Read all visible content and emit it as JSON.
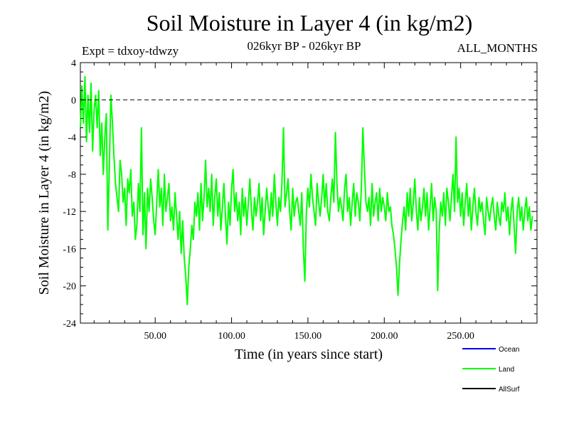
{
  "header": {
    "title": "Soil Moisture in Layer 4 (in kg/m2)",
    "expt": "Expt = tdxoy-tdwzy",
    "period": "026kyr BP - 026kyr BP",
    "months": "ALL_MONTHS"
  },
  "chart_data": {
    "type": "line",
    "title": "Soil Moisture in Layer 4 (in kg/m2)",
    "xlabel": "Time (in years since start)",
    "ylabel": "Soil Moisture in Layer 4 (in kg/m2)",
    "xlim": [
      1,
      300
    ],
    "ylim": [
      -24,
      4
    ],
    "x_ticks": [
      50,
      100,
      150,
      200,
      250
    ],
    "x_tick_labels": [
      "50.00",
      "100.00",
      "150.00",
      "200.00",
      "250.00"
    ],
    "y_ticks": [
      4,
      0,
      -4,
      -8,
      -12,
      -16,
      -20,
      -24
    ],
    "y_tick_labels": [
      "4",
      "0",
      "-4",
      "-8",
      "-12",
      "-16",
      "-20",
      "-24"
    ],
    "reference_line": {
      "y": 0,
      "style": "dashed"
    },
    "legend": {
      "position": "bottom-right",
      "entries": [
        "Ocean",
        "Land",
        "AllSurf"
      ]
    },
    "series": [
      {
        "name": "Ocean",
        "color": "#0000ff",
        "values": []
      },
      {
        "name": "Land",
        "color": "#00ff00",
        "x_start": 1,
        "x_step": 1,
        "values": [
          -3,
          1.5,
          -2.5,
          2.5,
          -4.5,
          0.5,
          -3.5,
          1.8,
          -5.5,
          -1,
          0.5,
          -3,
          1,
          -6,
          -2.5,
          -8,
          -4,
          -1.5,
          -14,
          -7,
          0.5,
          -2.5,
          -6,
          -9,
          -10.5,
          -12,
          -6.5,
          -8,
          -11,
          -9.5,
          -13.5,
          -8.5,
          -10,
          -7.5,
          -12.5,
          -11,
          -15,
          -13.5,
          -9,
          -12,
          -3,
          -14.5,
          -10,
          -16,
          -9.5,
          -12,
          -8.5,
          -10.5,
          -13,
          -14.5,
          -11,
          -7.5,
          -11.5,
          -9.5,
          -13.5,
          -8,
          -12,
          -10.5,
          -9,
          -13,
          -11.5,
          -14,
          -10,
          -12.5,
          -15,
          -12,
          -16.5,
          -13,
          -17,
          -19,
          -22,
          -18,
          -16,
          -13.5,
          -15,
          -11,
          -12.5,
          -10,
          -14,
          -9,
          -13,
          -10.5,
          -6.5,
          -11.5,
          -9.5,
          -12,
          -8,
          -13.5,
          -10.5,
          -8.5,
          -12.5,
          -10,
          -14,
          -11.5,
          -9,
          -12.5,
          -15.5,
          -11,
          -13.5,
          -9.5,
          -7.5,
          -12,
          -10,
          -13,
          -11,
          -14.5,
          -9.5,
          -12.5,
          -10.5,
          -13.5,
          -11,
          -8.5,
          -12,
          -14,
          -10.5,
          -12.5,
          -11,
          -9,
          -13,
          -10.5,
          -14.5,
          -12,
          -9.5,
          -11.5,
          -13,
          -10,
          -12.5,
          -8,
          -11,
          -13.5,
          -10.5,
          -12,
          -9,
          -3,
          -11.5,
          -10,
          -8.5,
          -12,
          -14,
          -9.5,
          -12.5,
          -11,
          -10.5,
          -12,
          -13.5,
          -10,
          -16,
          -19.5,
          -12,
          -9.5,
          -11.5,
          -8,
          -10.5,
          -12,
          -13.5,
          -9,
          -11,
          -12.5,
          -10.5,
          -8,
          -11.5,
          -9,
          -12,
          -13,
          -10.5,
          -8.5,
          -11,
          -3.5,
          -9,
          -12,
          -10.5,
          -11.5,
          -13,
          -9.5,
          -8,
          -12,
          -10.5,
          -13.5,
          -11,
          -9,
          -12.5,
          -10,
          -11,
          -13,
          -9.5,
          -3,
          -7.5,
          -11,
          -12,
          -10.5,
          -13.5,
          -9,
          -12.5,
          -11,
          -10,
          -13,
          -9.5,
          -12,
          -10.5,
          -11.5,
          -13,
          -10,
          -12,
          -11.5,
          -13.5,
          -14.5,
          -16,
          -18,
          -21,
          -17.5,
          -15,
          -13,
          -11.5,
          -14,
          -10,
          -12.5,
          -9.5,
          -13,
          -11,
          -8.5,
          -12,
          -14,
          -10.5,
          -13,
          -11.5,
          -9.5,
          -12.5,
          -10,
          -14,
          -11.5,
          -9,
          -13,
          -10.5,
          -12,
          -20.5,
          -14,
          -11,
          -12.5,
          -10,
          -13.5,
          -9.5,
          -11,
          -13,
          -10.5,
          -8,
          -12,
          -4,
          -11,
          -9.5,
          -12.5,
          -10,
          -13.5,
          -11,
          -9,
          -12.5,
          -10.5,
          -14,
          -11.5,
          -9.5,
          -12,
          -13.5,
          -10.5,
          -12,
          -11,
          -13,
          -14.5,
          -10.5,
          -12,
          -13,
          -11.5,
          -10.5,
          -12.5,
          -14,
          -11,
          -12.5,
          -13.5,
          -11,
          -12,
          -10,
          -13,
          -11.5,
          -14.5,
          -12,
          -10.5,
          -13.5,
          -16.5,
          -12,
          -10.5,
          -13,
          -11.5,
          -14,
          -12,
          -10.5,
          -13,
          -11.5,
          -14,
          -12.5
        ]
      },
      {
        "name": "AllSurf",
        "color": "#000000",
        "values": []
      }
    ]
  }
}
